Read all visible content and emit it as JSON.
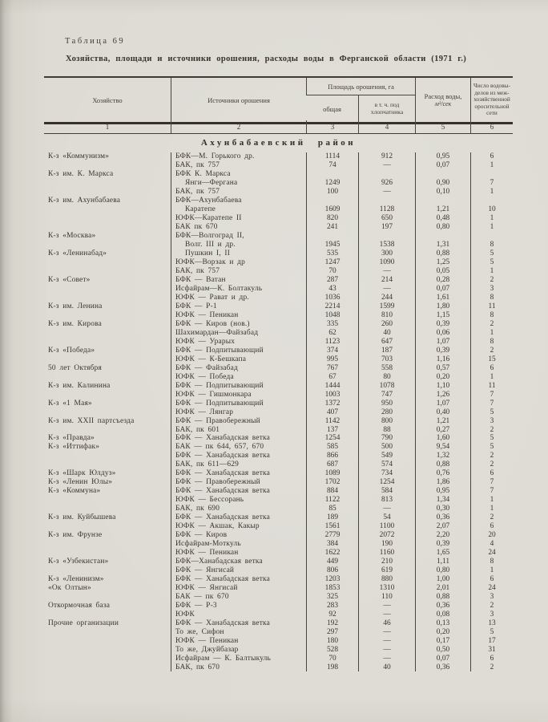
{
  "page": {
    "label": "Таблица 69",
    "title": "Хозяйства, площади и источники орошения, расходы воды в Ферганской области (1971 г.)"
  },
  "table": {
    "headers": {
      "col1": "Хозяйство",
      "col2": "Источники орошения",
      "area_group": "Площадь орошения, га",
      "col3": "общая",
      "col4": "в т. ч. под\nхлопчатника",
      "col5_label": "Расход воды,",
      "col5_unit": "м³/сек",
      "col6": "Число водовы-\nделов из меж-\nхозяйственной\nоросительной\nсети"
    },
    "column_numbers": [
      "1",
      "2",
      "3",
      "4",
      "5",
      "6"
    ],
    "section_title": "Ахунбабаевский район",
    "rows": [
      {
        "farm": "К-з «Коммунизм»",
        "source": "БФК—М. Горького др.",
        "total": "1114",
        "cotton": "912",
        "flow": "0,95",
        "outlets": "6"
      },
      {
        "source": "БАК, пк 757",
        "total": "74",
        "cotton": "—",
        "flow": "0,07",
        "outlets": "1"
      },
      {
        "farm": "К-з им. К. Маркса",
        "source": "БФК К. Маркса"
      },
      {
        "source": "Янги—Фергана",
        "indent": true,
        "total": "1249",
        "cotton": "926",
        "flow": "0,90",
        "outlets": "7"
      },
      {
        "source": "БАК, пк 757",
        "total": "100",
        "cotton": "—",
        "flow": "0,10",
        "outlets": "1"
      },
      {
        "farm": "К-з им. Ахунбабаева",
        "source": "БФК—Ахунбабаева"
      },
      {
        "source": "Каратепе",
        "indent": true,
        "total": "1609",
        "cotton": "1128",
        "flow": "1,21",
        "outlets": "10"
      },
      {
        "source": "ЮФК—Каратепе II",
        "total": "820",
        "cotton": "650",
        "flow": "0,48",
        "outlets": "1"
      },
      {
        "source": "БАК пк 670",
        "total": "241",
        "cotton": "197",
        "flow": "0,80",
        "outlets": "1"
      },
      {
        "farm": "К-з «Москва»",
        "source": "БФК—Волгоград II,"
      },
      {
        "source": "Волг. III и др.",
        "indent": true,
        "total": "1945",
        "cotton": "1538",
        "flow": "1,31",
        "outlets": "8"
      },
      {
        "farm": "К-з «Ленинабад»",
        "source": "Пушкин I, II",
        "indent": true,
        "total": "535",
        "cotton": "300",
        "flow": "0,88",
        "outlets": "5"
      },
      {
        "source": "ЮФК—Ворзак и др",
        "total": "1247",
        "cotton": "1090",
        "flow": "1,25",
        "outlets": "5"
      },
      {
        "source": "БАК, пк 757",
        "total": "70",
        "cotton": "—",
        "flow": "0,05",
        "outlets": "1"
      },
      {
        "farm": "К-з «Совет»",
        "source": "БФК — Ватан",
        "total": "287",
        "cotton": "214",
        "flow": "0,28",
        "outlets": "2"
      },
      {
        "source": "Исфайрам—К. Болтакуль",
        "total": "43",
        "cotton": "—",
        "flow": "0,07",
        "outlets": "3"
      },
      {
        "source": "ЮФК — Рават и др.",
        "total": "1036",
        "cotton": "244",
        "flow": "1,61",
        "outlets": "8"
      },
      {
        "farm": "К-з им. Ленина",
        "source": "БФК — Р-1",
        "total": "2214",
        "cotton": "1599",
        "flow": "1,80",
        "outlets": "11"
      },
      {
        "source": "ЮФК — Пеникан",
        "total": "1048",
        "cotton": "810",
        "flow": "1,15",
        "outlets": "8"
      },
      {
        "farm": "К-з им. Кирова",
        "source": "БФК — Киров (нов.)",
        "total": "335",
        "cotton": "260",
        "flow": "0,39",
        "outlets": "2"
      },
      {
        "source": "Шахимардан—Файзабад",
        "total": "62",
        "cotton": "40",
        "flow": "0,06",
        "outlets": "1"
      },
      {
        "source": "ЮФК — Урарых",
        "total": "1123",
        "cotton": "647",
        "flow": "1,07",
        "outlets": "8"
      },
      {
        "farm": "К-з «Победа»",
        "source": "БФК — Подпитывающий",
        "total": "374",
        "cotton": "187",
        "flow": "0,39",
        "outlets": "2"
      },
      {
        "source": "ЮФК — К-Бешкапа",
        "total": "995",
        "cotton": "703",
        "flow": "1,16",
        "outlets": "15"
      },
      {
        "farm": "50 лет Октября",
        "source": "БФК — Файзабад",
        "total": "767",
        "cotton": "558",
        "flow": "0,57",
        "outlets": "6"
      },
      {
        "source": "ЮФК — Победа",
        "total": "67",
        "cotton": "80",
        "flow": "0,20",
        "outlets": "1"
      },
      {
        "farm": "К-з им. Калинина",
        "source": "БФК — Подпитывающий",
        "total": "1444",
        "cotton": "1078",
        "flow": "1,10",
        "outlets": "11"
      },
      {
        "source": "ЮФК — Гишмонкара",
        "total": "1003",
        "cotton": "747",
        "flow": "1,26",
        "outlets": "7"
      },
      {
        "farm": "К-з «1 Мая»",
        "source": "БФК — Подпитывающий",
        "total": "1372",
        "cotton": "950",
        "flow": "1,07",
        "outlets": "7"
      },
      {
        "source": "ЮФК — Лянгар",
        "total": "407",
        "cotton": "280",
        "flow": "0,40",
        "outlets": "5"
      },
      {
        "farm": "К-з им. XXII партсъезда",
        "source": "БФК — Правобережный",
        "total": "1142",
        "cotton": "800",
        "flow": "1,21",
        "outlets": "3"
      },
      {
        "source": "БАК, пк 601",
        "total": "137",
        "cotton": "88",
        "flow": "0,27",
        "outlets": "2"
      },
      {
        "farm": "К-з «Правда»",
        "source": "БФК — Ханабадская ветка",
        "total": "1254",
        "cotton": "790",
        "flow": "1,60",
        "outlets": "5"
      },
      {
        "farm": "К-з «Иттифак»",
        "source": "БАК — пк 644, 657, 670",
        "total": "585",
        "cotton": "500",
        "flow": "9,54",
        "outlets": "5"
      },
      {
        "source": "БФК — Ханабадская ветка",
        "total": "866",
        "cotton": "549",
        "flow": "1,32",
        "outlets": "2"
      },
      {
        "source": "БАК, пк 611—629",
        "total": "687",
        "cotton": "574",
        "flow": "0,88",
        "outlets": "2"
      },
      {
        "farm": "К-з «Шарк Юлдуз»",
        "source": "БФК — Ханабадская ветка",
        "total": "1089",
        "cotton": "734",
        "flow": "0,76",
        "outlets": "6"
      },
      {
        "farm": "К-з «Ленин Юлы»",
        "source": "БФК — Правобережный",
        "total": "1702",
        "cotton": "1254",
        "flow": "1,86",
        "outlets": "7"
      },
      {
        "farm": "К-з «Коммуна»",
        "source": "БФК — Ханабадская ветка",
        "total": "884",
        "cotton": "584",
        "flow": "0,95",
        "outlets": "7"
      },
      {
        "source": "ЮФК — Бессорань",
        "total": "1122",
        "cotton": "813",
        "flow": "1,34",
        "outlets": "1"
      },
      {
        "source": "БАК, пк 690",
        "total": "85",
        "cotton": "—",
        "flow": "0,30",
        "outlets": "1"
      },
      {
        "farm": "К-з им. Куйбышева",
        "source": "БФК — Ханабадская ветка",
        "total": "189",
        "cotton": "54",
        "flow": "0,36",
        "outlets": "2"
      },
      {
        "source": "ЮФК — Акшак, Какыр",
        "total": "1561",
        "cotton": "1100",
        "flow": "2,07",
        "outlets": "6"
      },
      {
        "farm": "К-з им. Фрунзе",
        "source": "БФК — Киров",
        "total": "2779",
        "cotton": "2072",
        "flow": "2,20",
        "outlets": "20"
      },
      {
        "source": "Исфайрам-Моткуль",
        "total": "384",
        "cotton": "190",
        "flow": "0,39",
        "outlets": "4"
      },
      {
        "source": "ЮФК — Пеникан",
        "total": "1622",
        "cotton": "1160",
        "flow": "1,65",
        "outlets": "24"
      },
      {
        "farm": "К-з «Узбекистан»",
        "source": "БФК—Ханабадская ветка",
        "total": "449",
        "cotton": "210",
        "flow": "1,11",
        "outlets": "8"
      },
      {
        "source": "БФК — Янгисай",
        "total": "806",
        "cotton": "619",
        "flow": "0,80",
        "outlets": "1"
      },
      {
        "farm": "К-з «Ленинизм»",
        "source": "БФК — Ханабадская ветка",
        "total": "1203",
        "cotton": "880",
        "flow": "1,00",
        "outlets": "6"
      },
      {
        "farm": "«Ок Олтын»",
        "source": "ЮФК — Янгисай",
        "total": "1853",
        "cotton": "1310",
        "flow": "2,01",
        "outlets": "24"
      },
      {
        "source": "БАК — пк 670",
        "total": "325",
        "cotton": "110",
        "flow": "0,88",
        "outlets": "3"
      },
      {
        "farm": "Откормочная база",
        "source": "БФК — Р-3",
        "total": "283",
        "cotton": "—",
        "flow": "0,36",
        "outlets": "2"
      },
      {
        "source": "ЮФК",
        "total": "92",
        "cotton": "—",
        "flow": "0,08",
        "outlets": "3"
      },
      {
        "farm": "Прочие организации",
        "source": "БФК — Ханабадская ветка",
        "total": "192",
        "cotton": "46",
        "flow": "0,13",
        "outlets": "13"
      },
      {
        "source": "То же, Сифон",
        "total": "297",
        "cotton": "—",
        "flow": "0,20",
        "outlets": "5"
      },
      {
        "source": "ЮФК — Пеникан",
        "total": "180",
        "cotton": "—",
        "flow": "0,17",
        "outlets": "17"
      },
      {
        "source": "То же, Джуйбазар",
        "total": "528",
        "cotton": "—",
        "flow": "0,50",
        "outlets": "31"
      },
      {
        "source": "Исфайрам — К. Балтыкуль",
        "total": "70",
        "cotton": "—",
        "flow": "0,07",
        "outlets": "6"
      },
      {
        "source": "БАК, пк 670",
        "total": "198",
        "cotton": "40",
        "flow": "0,36",
        "outlets": "2"
      }
    ]
  }
}
